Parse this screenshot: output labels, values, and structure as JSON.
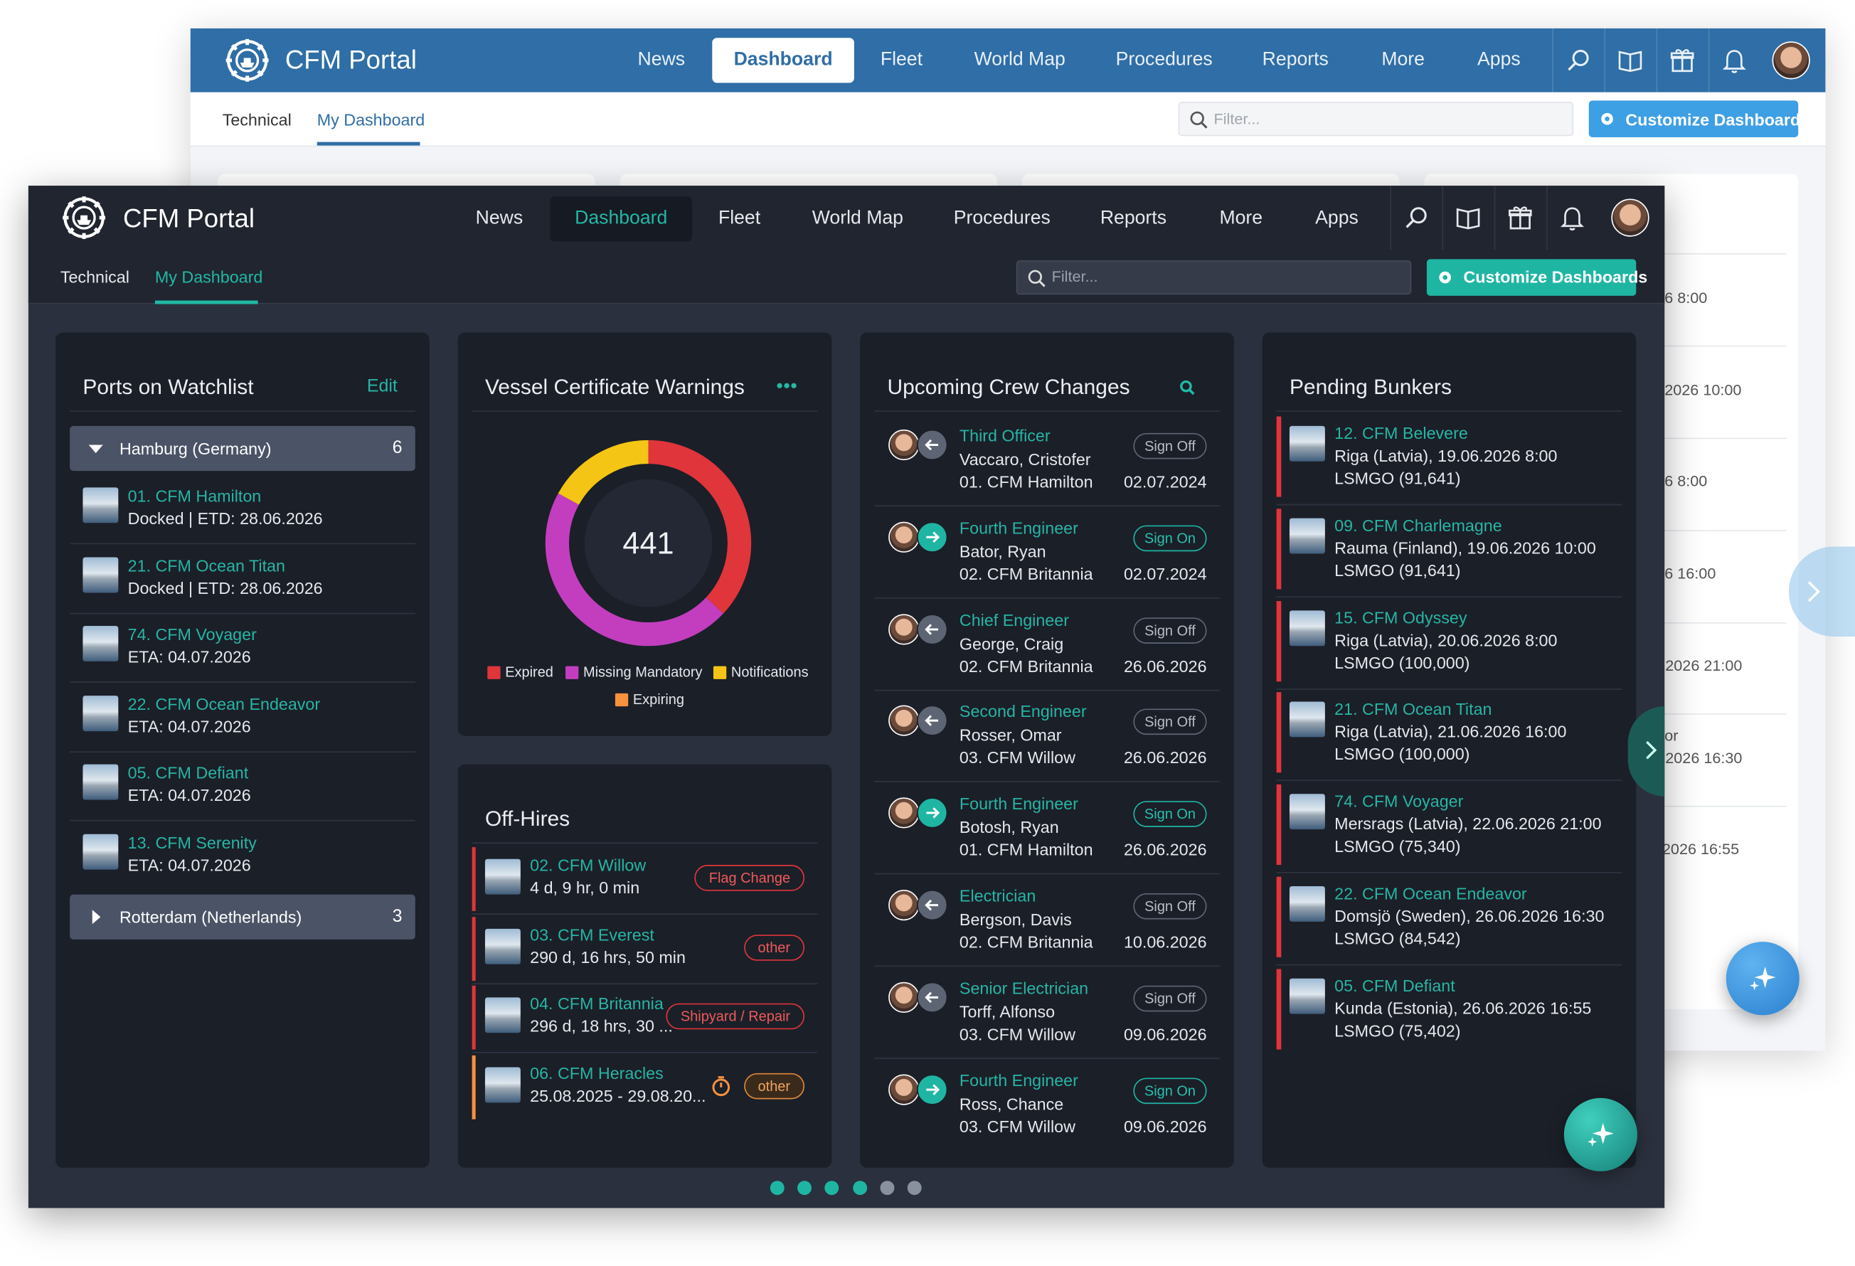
{
  "portal": {
    "brand": "CFM Portal",
    "nav": [
      "News",
      "Dashboard",
      "Fleet",
      "World Map",
      "Procedures",
      "Reports",
      "More",
      "Apps"
    ],
    "tabs": [
      "Technical",
      "My Dashboard"
    ],
    "filter": "Filter...",
    "button": "Customize Dashboards"
  },
  "back_peek": [
    "6 8:00",
    "2026 10:00",
    "6 8:00",
    "6 16:00",
    ".2026 21:00",
    "or",
    ".2026 16:30",
    "2026 16:55"
  ],
  "watchlist": {
    "title": "Ports on Watchlist",
    "action": "Edit",
    "groups": [
      {
        "name": "Hamburg (Germany)",
        "count": 6,
        "items": [
          {
            "name": "01. CFM Hamilton",
            "status": "Docked | ETD: 28.06.2026"
          },
          {
            "name": "21. CFM Ocean Titan",
            "status": "Docked | ETD: 28.06.2026"
          },
          {
            "name": "74. CFM Voyager",
            "status": "ETA: 04.07.2026"
          },
          {
            "name": "22. CFM Ocean Endeavor",
            "status": "ETA: 04.07.2026"
          },
          {
            "name": "05. CFM Defiant",
            "status": "ETA: 04.07.2026"
          },
          {
            "name": "13. CFM Serenity",
            "status": "ETA: 04.07.2026"
          }
        ]
      },
      {
        "name": "Rotterdam (Netherlands)",
        "count": 3
      }
    ]
  },
  "certificates": {
    "title": "Vessel Certificate Warnings",
    "total": 441,
    "segments": [
      {
        "name": "Expired",
        "color": "#e0353b",
        "value": 37
      },
      {
        "name": "Missing Mandatory",
        "color": "#c23ebf",
        "value": 46
      },
      {
        "name": "Notifications",
        "color": "#f4c514",
        "value": 17
      },
      {
        "name": "Expiring",
        "color": "#f7923f",
        "value": 0
      }
    ]
  },
  "offhires": {
    "title": "Off-Hires",
    "items": [
      {
        "name": "02. CFM Willow",
        "duration": "4 d, 9 hr, 0 min",
        "tag": "Flag Change"
      },
      {
        "name": "03. CFM Everest",
        "duration": "290 d, 16 hrs, 50 min",
        "tag": "other"
      },
      {
        "name": "04. CFM Britannia",
        "duration": "296 d, 18 hrs, 30 ...",
        "tag": "Shipyard / Repair"
      },
      {
        "name": "06. CFM Heracles",
        "duration": "25.08.2025 - 29.08.20...",
        "tag": "other"
      }
    ]
  },
  "crew": {
    "title": "Upcoming Crew Changes",
    "items": [
      {
        "role": "Third Officer",
        "name": "Vaccaro, Cristofer",
        "vessel": "01. CFM Hamilton",
        "action": "Sign Off",
        "date": "02.07.2024"
      },
      {
        "role": "Fourth Engineer",
        "name": "Bator, Ryan",
        "vessel": "02. CFM Britannia",
        "action": "Sign On",
        "date": "02.07.2024"
      },
      {
        "role": "Chief Engineer",
        "name": "George, Craig",
        "vessel": "02. CFM Britannia",
        "action": "Sign Off",
        "date": "26.06.2026"
      },
      {
        "role": "Second Engineer",
        "name": "Rosser, Omar",
        "vessel": "03. CFM Willow",
        "action": "Sign Off",
        "date": "26.06.2026"
      },
      {
        "role": "Fourth Engineer",
        "name": "Botosh, Ryan",
        "vessel": "01. CFM Hamilton",
        "action": "Sign On",
        "date": "26.06.2026"
      },
      {
        "role": "Electrician",
        "name": "Bergson, Davis",
        "vessel": "02. CFM Britannia",
        "action": "Sign Off",
        "date": "10.06.2026"
      },
      {
        "role": "Senior Electrician",
        "name": "Torff, Alfonso",
        "vessel": "03. CFM Willow",
        "action": "Sign Off",
        "date": "09.06.2026"
      },
      {
        "role": "Fourth Engineer",
        "name": "Ross, Chance",
        "vessel": "03. CFM Willow",
        "action": "Sign On",
        "date": "09.06.2026"
      }
    ]
  },
  "bunkers": {
    "title": "Pending Bunkers",
    "items": [
      {
        "name": "12. CFM Belevere",
        "place": "Riga (Latvia), 19.06.2026 8:00",
        "fuel": "LSMGO (91,641)"
      },
      {
        "name": "09. CFM Charlemagne",
        "place": "Rauma (Finland), 19.06.2026 10:00",
        "fuel": "LSMGO (91,641)"
      },
      {
        "name": "15. CFM Odyssey",
        "place": "Riga (Latvia), 20.06.2026 8:00",
        "fuel": "LSMGO (100,000)"
      },
      {
        "name": "21. CFM Ocean Titan",
        "place": "Riga (Latvia), 21.06.2026 16:00",
        "fuel": "LSMGO (100,000)"
      },
      {
        "name": "74. CFM Voyager",
        "place": "Mersrags (Latvia), 22.06.2026 21:00",
        "fuel": "LSMGO (75,340)"
      },
      {
        "name": "22. CFM Ocean Endeavor",
        "place": "Domsjö (Sweden), 26.06.2026 16:30",
        "fuel": "LSMGO (84,542)"
      },
      {
        "name": "05. CFM Defiant",
        "place": "Kunda (Estonia), 26.06.2026 16:55",
        "fuel": "LSMGO (75,402)"
      }
    ]
  }
}
